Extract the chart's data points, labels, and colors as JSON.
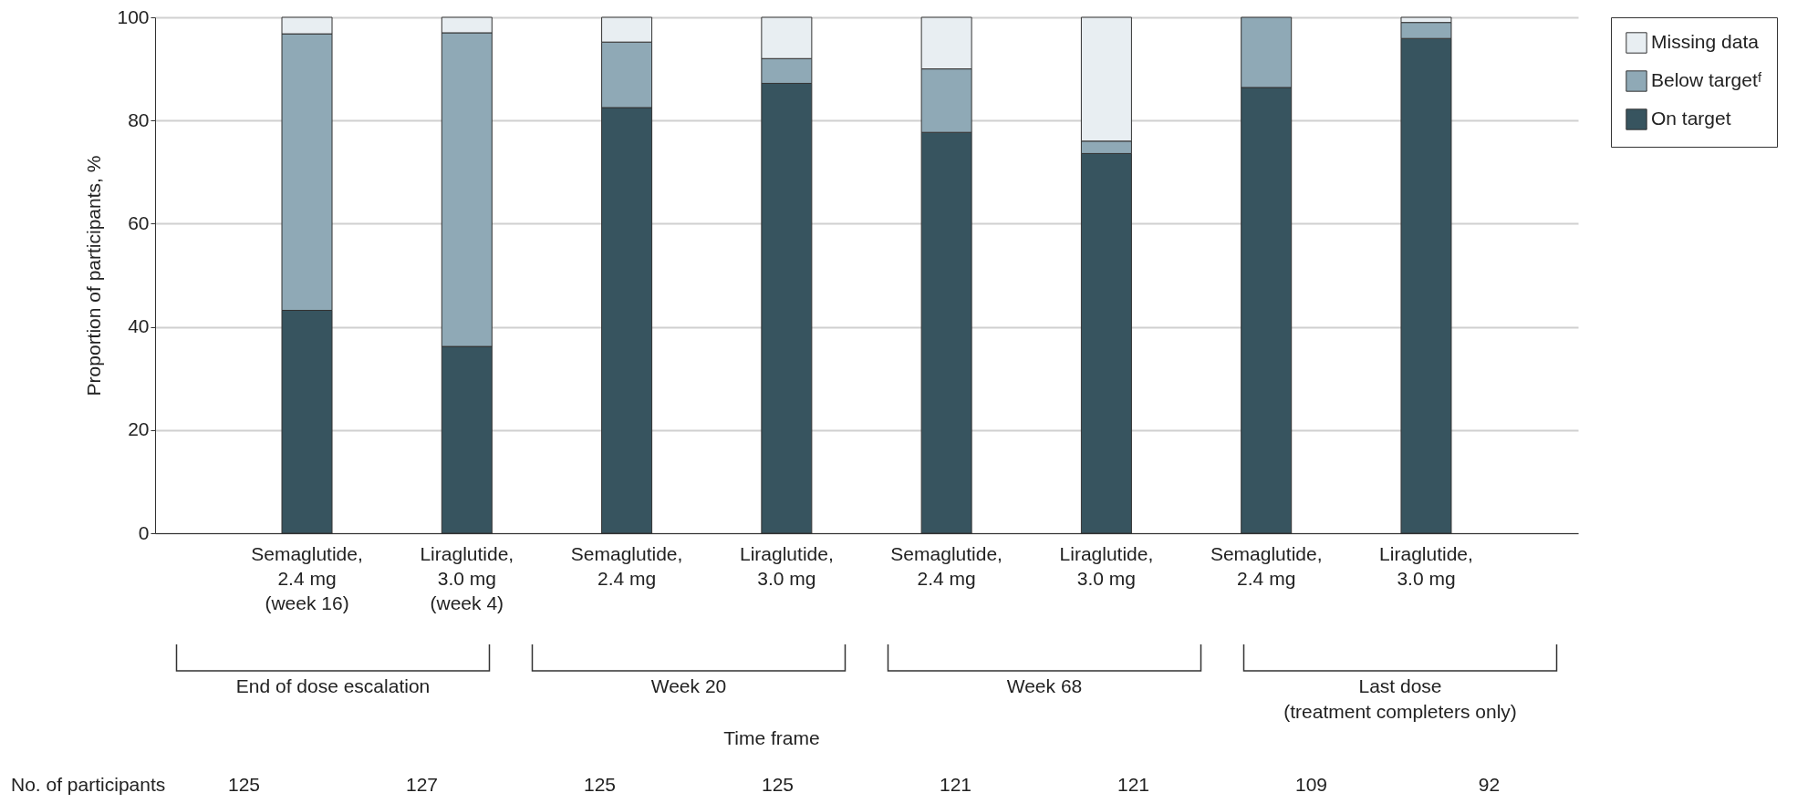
{
  "chart_data": {
    "type": "bar",
    "stacked": true,
    "ylabel": "Proportion of participants, %",
    "categories": [
      "Semaglutide,\n2.4 mg\n(week 16)",
      "Liraglutide,\n3.0 mg\n(week 4)",
      "Semaglutide,\n2.4 mg",
      "Liraglutide,\n3.0 mg",
      "Semaglutide,\n2.4 mg",
      "Liraglutide,\n3.0 mg",
      "Semaglutide,\n2.4 mg",
      "Liraglutide,\n3.0 mg"
    ],
    "series": [
      {
        "name": "On target",
        "color": "#37545f",
        "values": [
          43.2,
          36.2,
          82.5,
          87.2,
          77.7,
          73.6,
          86.4,
          95.9
        ]
      },
      {
        "name": "Below targetᶠ",
        "color": "#8fa9b6",
        "values": [
          53.6,
          60.8,
          12.7,
          4.8,
          12.3,
          2.4,
          13.6,
          3.1
        ]
      },
      {
        "name": "Missing data",
        "color": "#e8eef2",
        "values": [
          3.2,
          3.0,
          4.8,
          8.0,
          10.0,
          24.0,
          0,
          1.0
        ]
      }
    ],
    "ylim": [
      0,
      100
    ],
    "yticks": [
      0,
      20,
      40,
      60,
      80,
      100
    ],
    "grid": "y",
    "legend": "top right",
    "annotations": [
      "End of dose escalation",
      "Week 20",
      "Week 68",
      "Last dose\n(treatment completers only)",
      "Time frame",
      "No. of participants",
      "125",
      "127",
      "125",
      "125",
      "121",
      "121",
      "109",
      "92"
    ]
  }
}
